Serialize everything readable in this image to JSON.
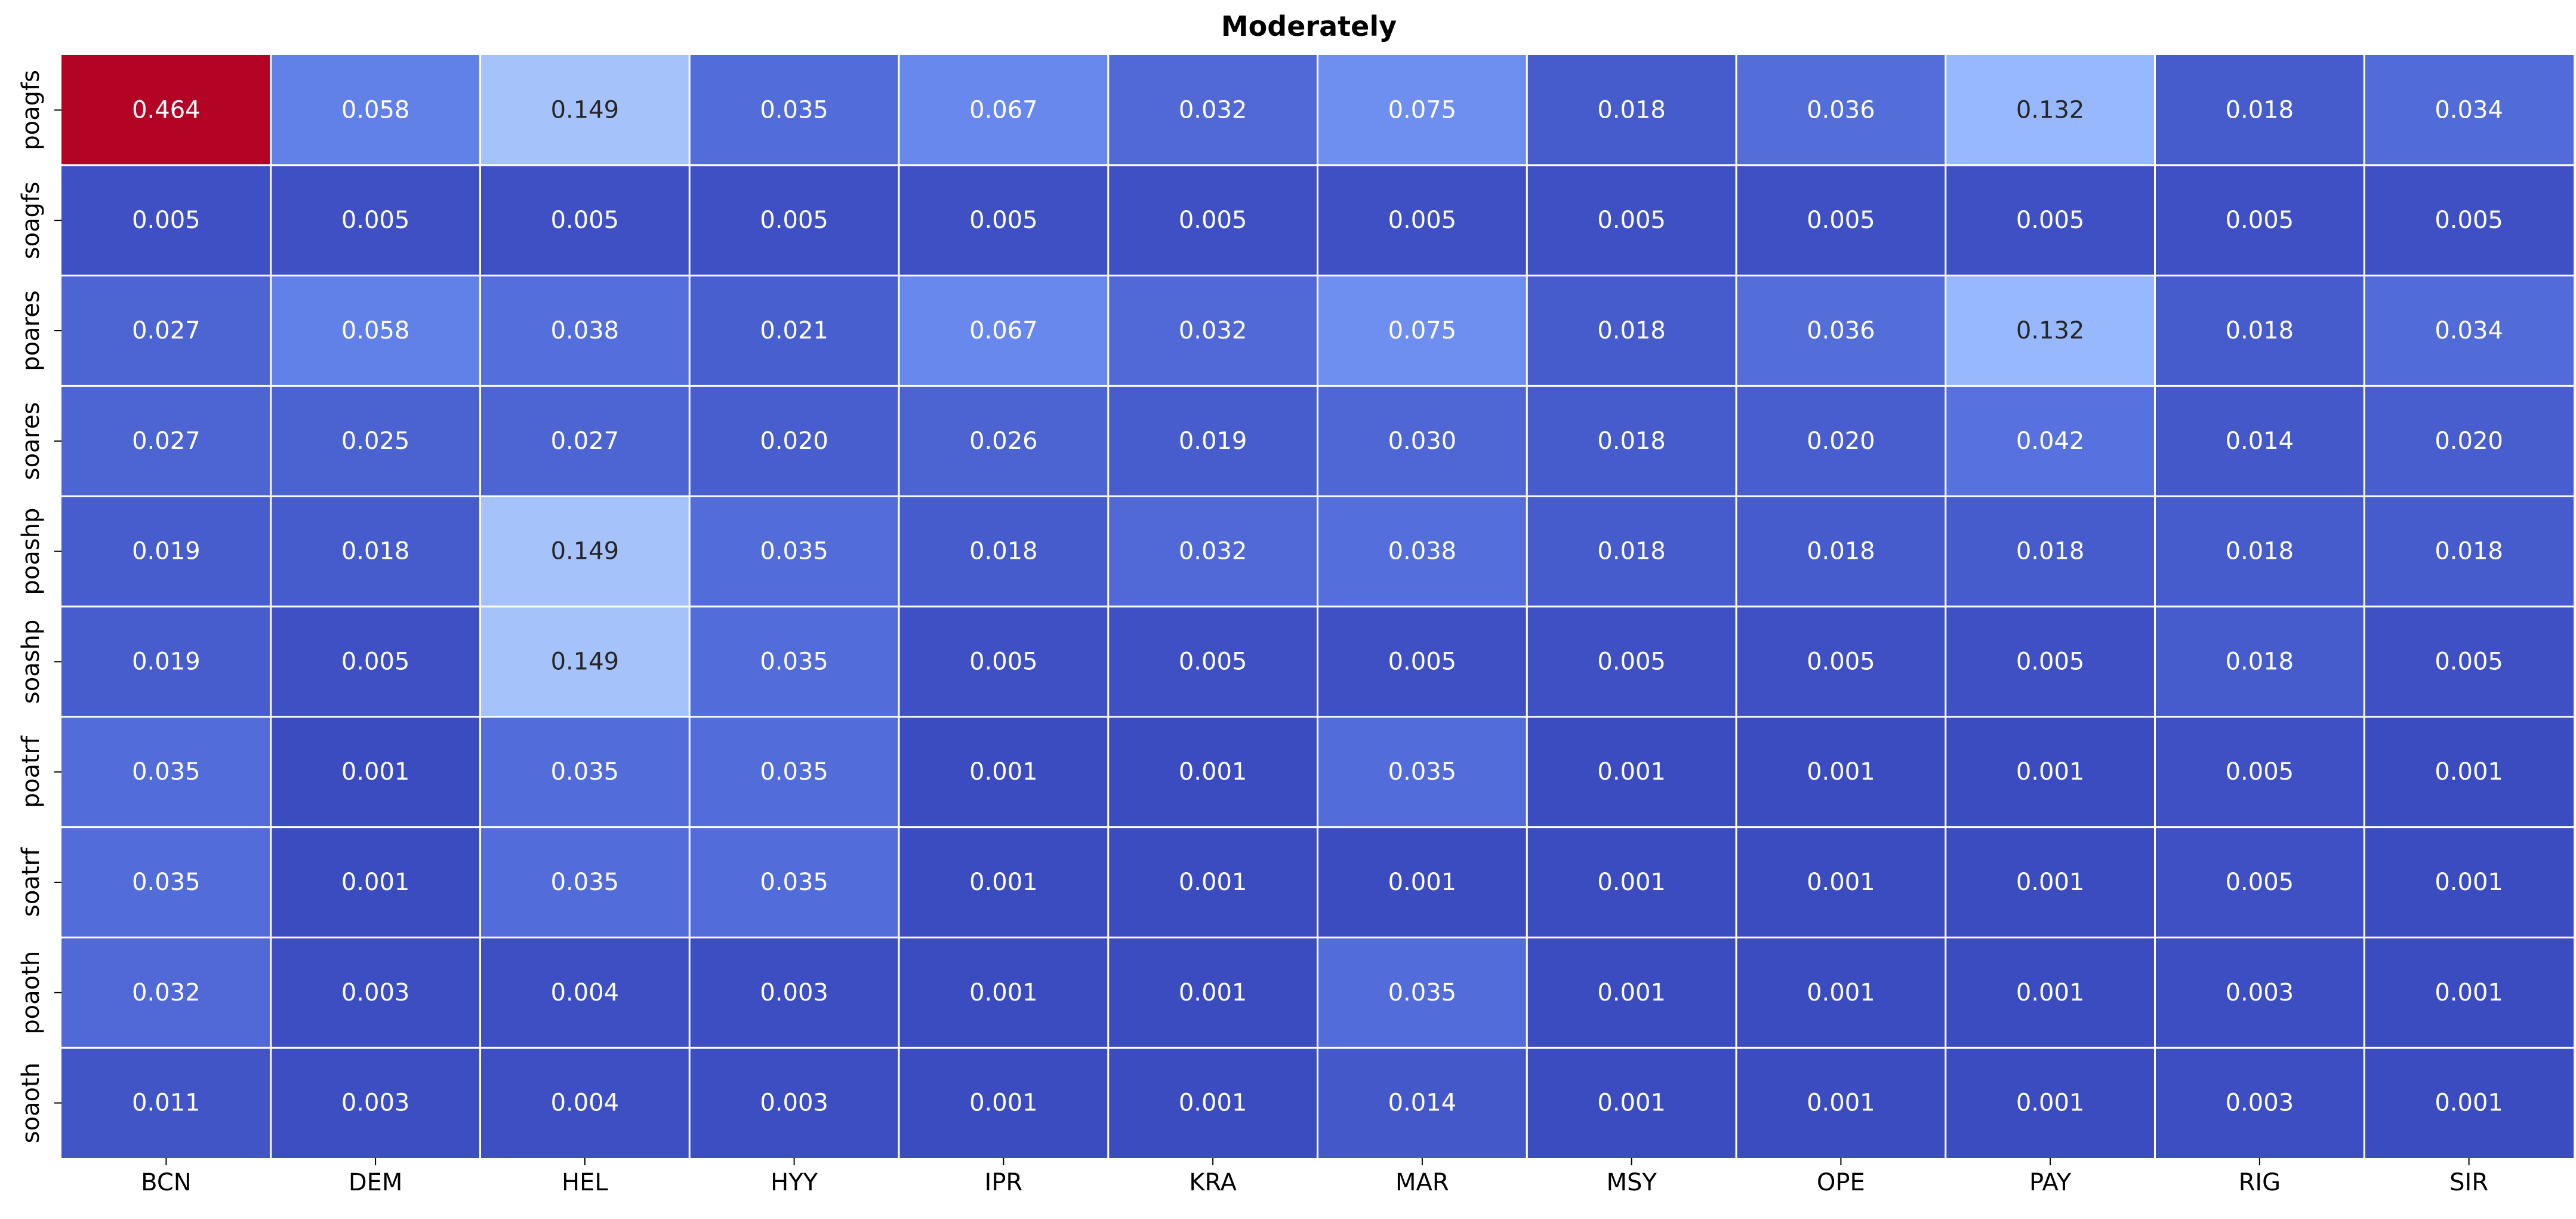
{
  "chart_data": {
    "type": "heatmap",
    "title": "Moderately",
    "colormap": "coolwarm",
    "color_min": 0.001,
    "color_max": 0.464,
    "x_labels": [
      "BCN",
      "DEM",
      "HEL",
      "HYY",
      "IPR",
      "KRA",
      "MAR",
      "MSY",
      "OPE",
      "PAY",
      "RIG",
      "SIR"
    ],
    "y_labels": [
      "poagfs",
      "soagfs",
      "poares",
      "soares",
      "poashp",
      "soashp",
      "poatrf",
      "soatrf",
      "poaoth",
      "soaoth"
    ],
    "values": [
      [
        0.464,
        0.058,
        0.149,
        0.035,
        0.067,
        0.032,
        0.075,
        0.018,
        0.036,
        0.132,
        0.018,
        0.034
      ],
      [
        0.005,
        0.005,
        0.005,
        0.005,
        0.005,
        0.005,
        0.005,
        0.005,
        0.005,
        0.005,
        0.005,
        0.005
      ],
      [
        0.027,
        0.058,
        0.038,
        0.021,
        0.067,
        0.032,
        0.075,
        0.018,
        0.036,
        0.132,
        0.018,
        0.034
      ],
      [
        0.027,
        0.025,
        0.027,
        0.02,
        0.026,
        0.019,
        0.03,
        0.018,
        0.02,
        0.042,
        0.014,
        0.02
      ],
      [
        0.019,
        0.018,
        0.149,
        0.035,
        0.018,
        0.032,
        0.038,
        0.018,
        0.018,
        0.018,
        0.018,
        0.018
      ],
      [
        0.019,
        0.005,
        0.149,
        0.035,
        0.005,
        0.005,
        0.005,
        0.005,
        0.005,
        0.005,
        0.018,
        0.005
      ],
      [
        0.035,
        0.001,
        0.035,
        0.035,
        0.001,
        0.001,
        0.035,
        0.001,
        0.001,
        0.001,
        0.005,
        0.001
      ],
      [
        0.035,
        0.001,
        0.035,
        0.035,
        0.001,
        0.001,
        0.001,
        0.001,
        0.001,
        0.001,
        0.005,
        0.001
      ],
      [
        0.032,
        0.003,
        0.004,
        0.003,
        0.001,
        0.001,
        0.035,
        0.001,
        0.001,
        0.001,
        0.003,
        0.001
      ],
      [
        0.011,
        0.003,
        0.004,
        0.003,
        0.001,
        0.001,
        0.014,
        0.001,
        0.001,
        0.001,
        0.003,
        0.001
      ]
    ],
    "annotation_format": "3 decimals",
    "grid_line_color": "#ffffff",
    "colorbar": false,
    "xlabel": "",
    "ylabel": ""
  }
}
